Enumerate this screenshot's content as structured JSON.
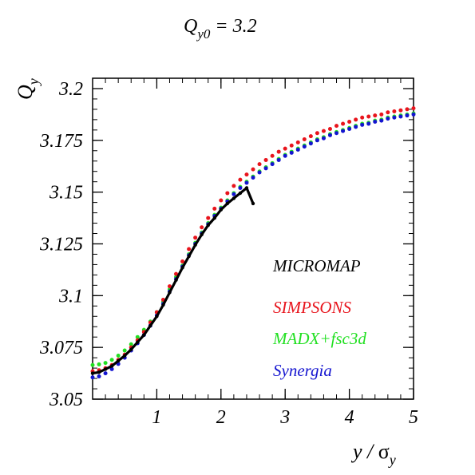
{
  "chart_data": {
    "type": "scatter",
    "title": "Q",
    "title_sub": "y0",
    "title_rest": " = 3.2",
    "xlabel_main": "y / ",
    "xlabel_sigma": "σ",
    "xlabel_sub": "y",
    "ylabel_main": "Q",
    "ylabel_sub": "y",
    "xlim": [
      0,
      5
    ],
    "ylim": [
      3.05,
      3.205
    ],
    "x_ticks": [
      1,
      2,
      3,
      4,
      5
    ],
    "x_tick_labels": [
      "1",
      "2",
      "3",
      "4",
      "5"
    ],
    "y_ticks": [
      3.05,
      3.075,
      3.1,
      3.125,
      3.15,
      3.175,
      3.2
    ],
    "y_tick_labels": [
      "3.05",
      "3.075",
      "3.1",
      "3.125",
      "3.15",
      "3.175",
      "3.2"
    ],
    "grid": false,
    "legend_position": "lower-right",
    "series": [
      {
        "name": "MICROMAP",
        "color": "#000000",
        "x": [
          0.0,
          0.1,
          0.2,
          0.3,
          0.4,
          0.5,
          0.6,
          0.7,
          0.8,
          0.9,
          1.0,
          1.1,
          1.2,
          1.3,
          1.4,
          1.5,
          1.6,
          1.7,
          1.8,
          1.9,
          2.0,
          2.1,
          2.2,
          2.3,
          2.4,
          2.5
        ],
        "y": [
          3.0625,
          3.063,
          3.0645,
          3.066,
          3.0685,
          3.071,
          3.074,
          3.0775,
          3.081,
          3.0855,
          3.09,
          3.0955,
          3.1015,
          3.1075,
          3.1135,
          3.119,
          3.1245,
          3.1295,
          3.134,
          3.1375,
          3.1415,
          3.1445,
          3.147,
          3.1495,
          3.152,
          3.1445
        ]
      },
      {
        "name": "SIMPSONS",
        "color": "#e8141c",
        "x": [
          0.0,
          0.1,
          0.2,
          0.3,
          0.4,
          0.5,
          0.6,
          0.7,
          0.8,
          0.9,
          1.0,
          1.1,
          1.2,
          1.3,
          1.4,
          1.5,
          1.6,
          1.7,
          1.8,
          1.9,
          2.0,
          2.1,
          2.2,
          2.3,
          2.4,
          2.5,
          2.6,
          2.7,
          2.8,
          2.9,
          3.0,
          3.1,
          3.2,
          3.3,
          3.4,
          3.5,
          3.6,
          3.7,
          3.8,
          3.9,
          4.0,
          4.1,
          4.2,
          4.3,
          4.4,
          4.5,
          4.6,
          4.7,
          4.8,
          4.9,
          5.0
        ],
        "y": [
          3.0635,
          3.064,
          3.065,
          3.0665,
          3.069,
          3.0715,
          3.075,
          3.0785,
          3.0825,
          3.087,
          3.092,
          3.098,
          3.1045,
          3.1105,
          3.1165,
          3.1225,
          3.128,
          3.133,
          3.1375,
          3.142,
          3.146,
          3.1495,
          3.153,
          3.156,
          3.1585,
          3.161,
          3.1635,
          3.1655,
          3.1675,
          3.1695,
          3.171,
          3.1725,
          3.174,
          3.1755,
          3.177,
          3.1785,
          3.1795,
          3.1805,
          3.182,
          3.183,
          3.184,
          3.185,
          3.186,
          3.1865,
          3.187,
          3.1875,
          3.1885,
          3.189,
          3.1895,
          3.19,
          3.1905
        ]
      },
      {
        "name": "MADX+fsc3d",
        "color": "#22e022",
        "x": [
          0.0,
          0.1,
          0.2,
          0.3,
          0.4,
          0.5,
          0.6,
          0.7,
          0.8,
          0.9,
          1.0,
          1.1,
          1.2,
          1.3,
          1.4,
          1.5,
          1.6,
          1.7,
          1.8,
          1.9,
          2.0,
          2.1,
          2.2,
          2.3,
          2.4,
          2.5,
          2.6,
          2.7,
          2.8,
          2.9,
          3.0,
          3.1,
          3.2,
          3.3,
          3.4,
          3.5,
          3.6,
          3.7,
          3.8,
          3.9,
          4.0,
          4.1,
          4.2,
          4.3,
          4.4,
          4.5,
          4.6,
          4.7,
          4.8,
          4.9,
          5.0
        ],
        "y": [
          3.0665,
          3.0668,
          3.0675,
          3.069,
          3.071,
          3.0735,
          3.0765,
          3.08,
          3.0835,
          3.0875,
          3.092,
          3.097,
          3.103,
          3.109,
          3.1145,
          3.12,
          3.1255,
          3.1305,
          3.135,
          3.139,
          3.1425,
          3.146,
          3.1495,
          3.1525,
          3.155,
          3.1575,
          3.16,
          3.162,
          3.164,
          3.166,
          3.168,
          3.1695,
          3.171,
          3.1725,
          3.174,
          3.1755,
          3.1765,
          3.178,
          3.179,
          3.18,
          3.181,
          3.182,
          3.183,
          3.1835,
          3.1845,
          3.185,
          3.186,
          3.1865,
          3.187,
          3.1875,
          3.188
        ]
      },
      {
        "name": "Synergia",
        "color": "#1414d0",
        "x": [
          0.0,
          0.1,
          0.2,
          0.3,
          0.4,
          0.5,
          0.6,
          0.7,
          0.8,
          0.9,
          1.0,
          1.1,
          1.2,
          1.3,
          1.4,
          1.5,
          1.6,
          1.7,
          1.8,
          1.9,
          2.0,
          2.1,
          2.2,
          2.3,
          2.4,
          2.5,
          2.6,
          2.7,
          2.8,
          2.9,
          3.0,
          3.1,
          3.2,
          3.3,
          3.4,
          3.5,
          3.6,
          3.7,
          3.8,
          3.9,
          4.0,
          4.1,
          4.2,
          4.3,
          4.4,
          4.5,
          4.6,
          4.7,
          4.8,
          4.9,
          5.0
        ],
        "y": [
          3.0605,
          3.061,
          3.0625,
          3.0645,
          3.067,
          3.07,
          3.0735,
          3.077,
          3.081,
          3.0855,
          3.0905,
          3.096,
          3.102,
          3.108,
          3.114,
          3.1195,
          3.125,
          3.13,
          3.1345,
          3.1385,
          3.142,
          3.1455,
          3.149,
          3.152,
          3.1545,
          3.157,
          3.1595,
          3.1615,
          3.1635,
          3.1655,
          3.1675,
          3.169,
          3.1705,
          3.172,
          3.1735,
          3.175,
          3.176,
          3.1775,
          3.1785,
          3.1795,
          3.1805,
          3.1815,
          3.1825,
          3.183,
          3.184,
          3.1845,
          3.1855,
          3.186,
          3.1865,
          3.187,
          3.1875
        ]
      }
    ]
  }
}
